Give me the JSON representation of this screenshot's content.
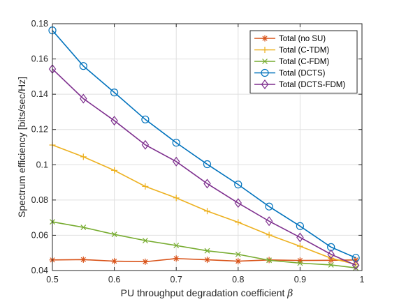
{
  "chart_data": {
    "type": "line",
    "xlabel": "PU throughput degradation coefficient",
    "xlabel_symbol": "β",
    "ylabel": "Spectrum efficiency [bits/sec/Hz]",
    "xlim": [
      0.5,
      1.0
    ],
    "ylim": [
      0.04,
      0.18
    ],
    "xticks": [
      0.5,
      0.6,
      0.7,
      0.8,
      0.9,
      1.0
    ],
    "xtick_labels": [
      "0.5",
      "0.6",
      "0.7",
      "0.8",
      "0.9",
      "1"
    ],
    "yticks": [
      0.04,
      0.06,
      0.08,
      0.1,
      0.12,
      0.14,
      0.16,
      0.18
    ],
    "ytick_labels": [
      "0.04",
      "0.06",
      "0.08",
      "0.1",
      "0.12",
      "0.14",
      "0.16",
      "0.18"
    ],
    "grid": true,
    "legend_position": "top-right",
    "x": [
      0.5,
      0.55,
      0.6,
      0.65,
      0.7,
      0.75,
      0.8,
      0.85,
      0.9,
      0.95,
      0.99
    ],
    "series": [
      {
        "name": "Total (no SU)",
        "color": "#D95319",
        "marker": "asterisk",
        "values": [
          0.046,
          0.0462,
          0.0453,
          0.045,
          0.0468,
          0.0461,
          0.0453,
          0.046,
          0.0457,
          0.0458,
          0.046
        ]
      },
      {
        "name": "Total (C-TDM)",
        "color": "#EDB120",
        "marker": "plus",
        "values": [
          0.1112,
          0.1045,
          0.0968,
          0.0877,
          0.0812,
          0.0737,
          0.0674,
          0.0602,
          0.0538,
          0.047,
          0.0435
        ]
      },
      {
        "name": "Total (C-FDM)",
        "color": "#77AC30",
        "marker": "x",
        "values": [
          0.0676,
          0.0645,
          0.0605,
          0.057,
          0.0542,
          0.0512,
          0.0492,
          0.0458,
          0.0442,
          0.0432,
          0.0415
        ]
      },
      {
        "name": "Total (DCTS)",
        "color": "#0072BD",
        "marker": "circle",
        "values": [
          0.1762,
          0.156,
          0.141,
          0.1257,
          0.1125,
          0.1003,
          0.0888,
          0.0763,
          0.0652,
          0.0533,
          0.0472
        ]
      },
      {
        "name": "Total (DCTS-FDM)",
        "color": "#7E2F8E",
        "marker": "diamond",
        "values": [
          0.1543,
          0.1375,
          0.125,
          0.1113,
          0.1018,
          0.0893,
          0.0783,
          0.068,
          0.0588,
          0.0492,
          0.043
        ]
      }
    ]
  }
}
